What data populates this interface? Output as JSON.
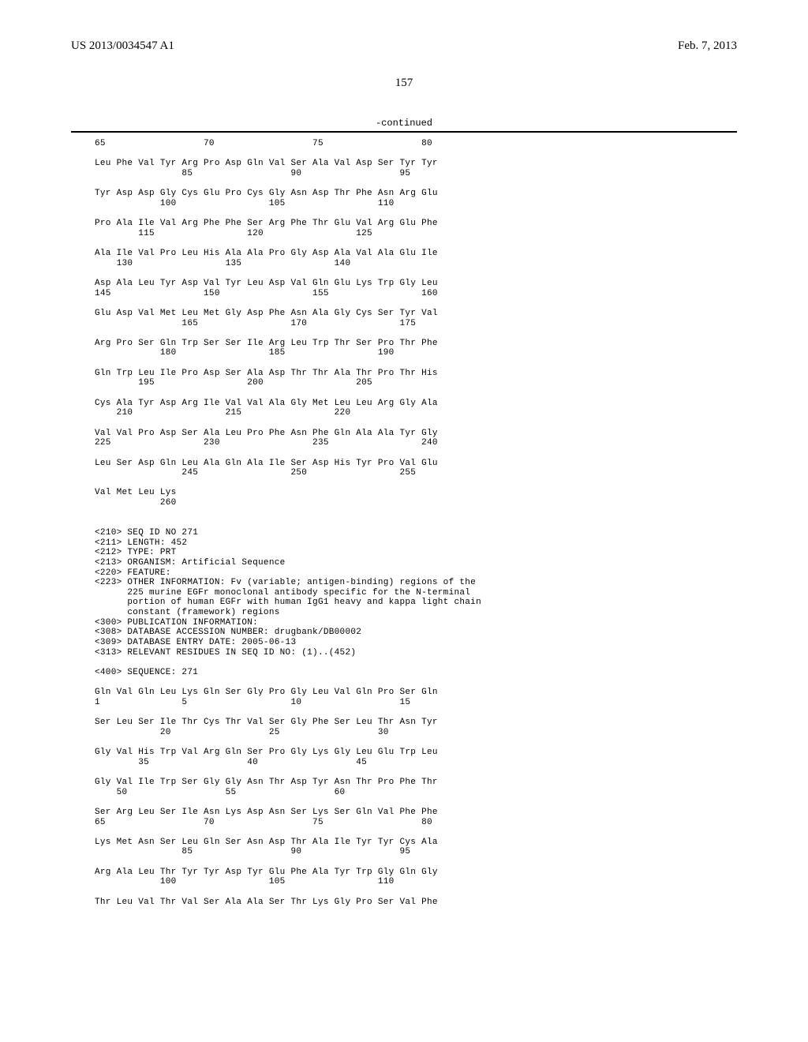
{
  "header": {
    "left": "US 2013/0034547 A1",
    "right": "Feb. 7, 2013"
  },
  "page_number": "157",
  "continued_label": "-continued",
  "sequence_lines": [
    "65                  70                  75                  80",
    "",
    "Leu Phe Val Tyr Arg Pro Asp Gln Val Ser Ala Val Asp Ser Tyr Tyr",
    "                85                  90                  95",
    "",
    "Tyr Asp Asp Gly Cys Glu Pro Cys Gly Asn Asp Thr Phe Asn Arg Glu",
    "            100                 105                 110",
    "",
    "Pro Ala Ile Val Arg Phe Phe Ser Arg Phe Thr Glu Val Arg Glu Phe",
    "        115                 120                 125",
    "",
    "Ala Ile Val Pro Leu His Ala Ala Pro Gly Asp Ala Val Ala Glu Ile",
    "    130                 135                 140",
    "",
    "Asp Ala Leu Tyr Asp Val Tyr Leu Asp Val Gln Glu Lys Trp Gly Leu",
    "145                 150                 155                 160",
    "",
    "Glu Asp Val Met Leu Met Gly Asp Phe Asn Ala Gly Cys Ser Tyr Val",
    "                165                 170                 175",
    "",
    "Arg Pro Ser Gln Trp Ser Ser Ile Arg Leu Trp Thr Ser Pro Thr Phe",
    "            180                 185                 190",
    "",
    "Gln Trp Leu Ile Pro Asp Ser Ala Asp Thr Thr Ala Thr Pro Thr His",
    "        195                 200                 205",
    "",
    "Cys Ala Tyr Asp Arg Ile Val Val Ala Gly Met Leu Leu Arg Gly Ala",
    "    210                 215                 220",
    "",
    "Val Val Pro Asp Ser Ala Leu Pro Phe Asn Phe Gln Ala Ala Tyr Gly",
    "225                 230                 235                 240",
    "",
    "Leu Ser Asp Gln Leu Ala Gln Ala Ile Ser Asp His Tyr Pro Val Glu",
    "                245                 250                 255",
    "",
    "Val Met Leu Lys",
    "            260",
    "",
    "",
    "<210> SEQ ID NO 271",
    "<211> LENGTH: 452",
    "<212> TYPE: PRT",
    "<213> ORGANISM: Artificial Sequence",
    "<220> FEATURE:",
    "<223> OTHER INFORMATION: Fv (variable; antigen-binding) regions of the",
    "      225 murine EGFr monoclonal antibody specific for the N-terminal",
    "      portion of human EGFr with human IgG1 heavy and kappa light chain",
    "      constant (framework) regions",
    "<300> PUBLICATION INFORMATION:",
    "<308> DATABASE ACCESSION NUMBER: drugbank/DB00002",
    "<309> DATABASE ENTRY DATE: 2005-06-13",
    "<313> RELEVANT RESIDUES IN SEQ ID NO: (1)..(452)",
    "",
    "<400> SEQUENCE: 271",
    "",
    "Gln Val Gln Leu Lys Gln Ser Gly Pro Gly Leu Val Gln Pro Ser Gln",
    "1               5                   10                  15",
    "",
    "Ser Leu Ser Ile Thr Cys Thr Val Ser Gly Phe Ser Leu Thr Asn Tyr",
    "            20                  25                  30",
    "",
    "Gly Val His Trp Val Arg Gln Ser Pro Gly Lys Gly Leu Glu Trp Leu",
    "        35                  40                  45",
    "",
    "Gly Val Ile Trp Ser Gly Gly Asn Thr Asp Tyr Asn Thr Pro Phe Thr",
    "    50                  55                  60",
    "",
    "Ser Arg Leu Ser Ile Asn Lys Asp Asn Ser Lys Ser Gln Val Phe Phe",
    "65                  70                  75                  80",
    "",
    "Lys Met Asn Ser Leu Gln Ser Asn Asp Thr Ala Ile Tyr Tyr Cys Ala",
    "                85                  90                  95",
    "",
    "Arg Ala Leu Thr Tyr Tyr Asp Tyr Glu Phe Ala Tyr Trp Gly Gln Gly",
    "            100                 105                 110",
    "",
    "Thr Leu Val Thr Val Ser Ala Ala Ser Thr Lys Gly Pro Ser Val Phe"
  ]
}
